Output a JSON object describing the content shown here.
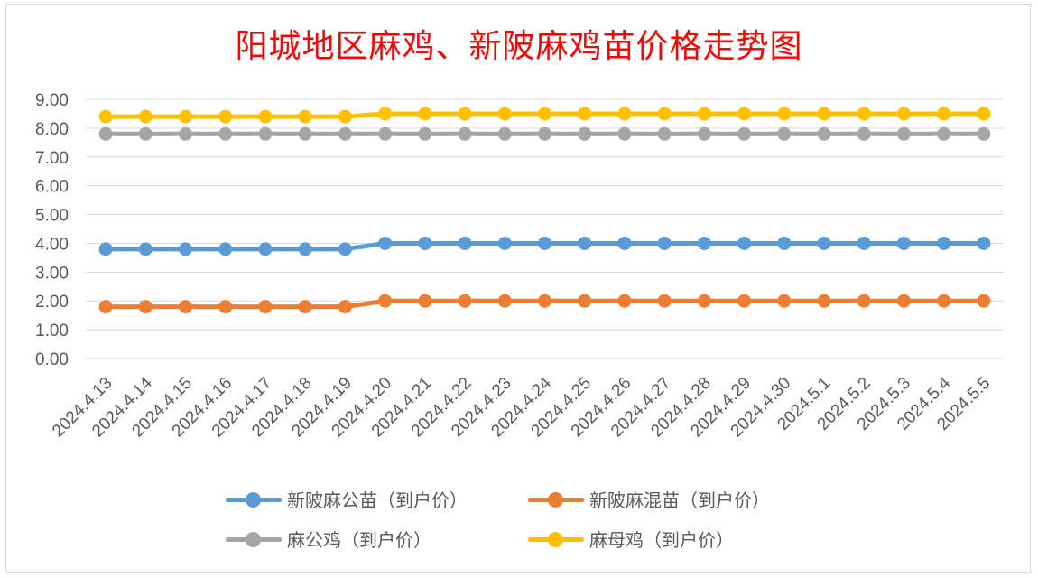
{
  "chart_data": {
    "type": "line",
    "title": "阳城地区麻鸡、新陂麻鸡苗价格走势图",
    "categories": [
      "2024.4.13",
      "2024.4.14",
      "2024.4.15",
      "2024.4.16",
      "2024.4.17",
      "2024.4.18",
      "2024.4.19",
      "2024.4.20",
      "2024.4.21",
      "2024.4.22",
      "2024.4.23",
      "2024.4.24",
      "2024.4.25",
      "2024.4.26",
      "2024.4.27",
      "2024.4.28",
      "2024.4.29",
      "2024.4.30",
      "2024.5.1",
      "2024.5.2",
      "2024.5.3",
      "2024.5.4",
      "2024.5.5"
    ],
    "y_ticks": [
      "0.00",
      "1.00",
      "2.00",
      "3.00",
      "4.00",
      "5.00",
      "6.00",
      "7.00",
      "8.00",
      "9.00"
    ],
    "ylim": [
      0,
      9
    ],
    "grid": true,
    "legend_position": "bottom",
    "series": [
      {
        "name": "新陂麻公苗（到户价）",
        "color": "#5b9bd5",
        "values": [
          3.8,
          3.8,
          3.8,
          3.8,
          3.8,
          3.8,
          3.8,
          4.0,
          4.0,
          4.0,
          4.0,
          4.0,
          4.0,
          4.0,
          4.0,
          4.0,
          4.0,
          4.0,
          4.0,
          4.0,
          4.0,
          4.0,
          4.0
        ]
      },
      {
        "name": "新陂麻混苗（到户价）",
        "color": "#ed7d31",
        "values": [
          1.8,
          1.8,
          1.8,
          1.8,
          1.8,
          1.8,
          1.8,
          2.0,
          2.0,
          2.0,
          2.0,
          2.0,
          2.0,
          2.0,
          2.0,
          2.0,
          2.0,
          2.0,
          2.0,
          2.0,
          2.0,
          2.0,
          2.0
        ]
      },
      {
        "name": "麻公鸡（到户价）",
        "color": "#a5a5a5",
        "values": [
          7.8,
          7.8,
          7.8,
          7.8,
          7.8,
          7.8,
          7.8,
          7.8,
          7.8,
          7.8,
          7.8,
          7.8,
          7.8,
          7.8,
          7.8,
          7.8,
          7.8,
          7.8,
          7.8,
          7.8,
          7.8,
          7.8,
          7.8
        ]
      },
      {
        "name": "麻母鸡（到户价）",
        "color": "#ffc000",
        "values": [
          8.4,
          8.4,
          8.4,
          8.4,
          8.4,
          8.4,
          8.4,
          8.5,
          8.5,
          8.5,
          8.5,
          8.5,
          8.5,
          8.5,
          8.5,
          8.5,
          8.5,
          8.5,
          8.5,
          8.5,
          8.5,
          8.5,
          8.5
        ]
      }
    ]
  }
}
